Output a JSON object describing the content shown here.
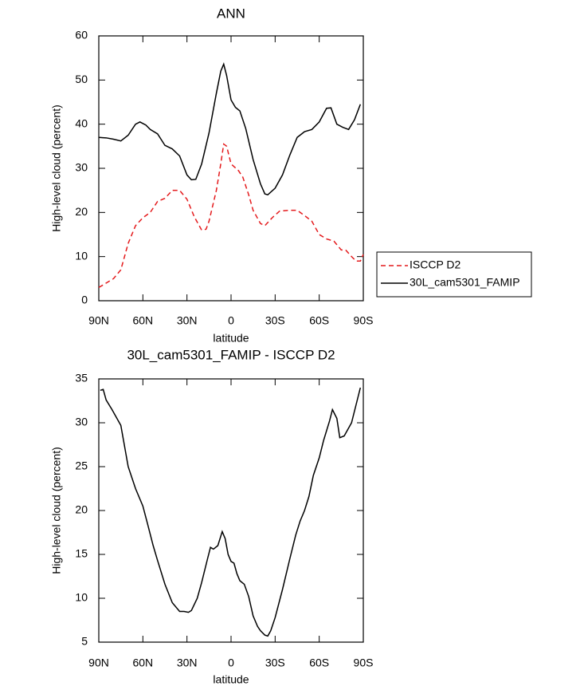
{
  "chart_data": [
    {
      "type": "line",
      "title": "ANN",
      "x_label": "latitude",
      "y_label": "High-level cloud (percent)",
      "xlim": [
        90,
        -90
      ],
      "ylim": [
        0,
        60
      ],
      "xticks": [
        {
          "value": 90,
          "label": "90N"
        },
        {
          "value": 60,
          "label": "60N"
        },
        {
          "value": 30,
          "label": "30N"
        },
        0,
        {
          "value": -30,
          "label": "30S"
        },
        {
          "value": -60,
          "label": "60S"
        },
        {
          "value": -90,
          "label": "90S"
        }
      ],
      "yticks": [
        0,
        10,
        20,
        30,
        40,
        50,
        60
      ],
      "legend": "right",
      "series": [
        {
          "name": "ISCCP D2",
          "color": "#e41a1c",
          "line_style": "dashed",
          "x": [
            90,
            85,
            80,
            75,
            70,
            65,
            60,
            55,
            50,
            45,
            40,
            35,
            30,
            25,
            20,
            17,
            15,
            10,
            7,
            5,
            3,
            0,
            -5,
            -8,
            -12,
            -15,
            -20,
            -23,
            -28,
            -33,
            -40,
            -45,
            -50,
            -55,
            -60,
            -65,
            -70,
            -75,
            -78,
            -82,
            -85,
            -88,
            -90
          ],
          "values": [
            3,
            4,
            5,
            7,
            13,
            17,
            18.8,
            20,
            22.5,
            23.2,
            25,
            25,
            23,
            19,
            16,
            16.2,
            18,
            25,
            31,
            35.5,
            35,
            31,
            29.5,
            28,
            24,
            20.5,
            17.5,
            17,
            18.8,
            20.3,
            20.5,
            20.5,
            19.3,
            18,
            15,
            14,
            13.5,
            11.5,
            11.5,
            10,
            9,
            9,
            10.5
          ]
        },
        {
          "name": "30L_cam5301_FAMIP",
          "color": "#000000",
          "line_style": "solid",
          "x": [
            90,
            85,
            80,
            75,
            70,
            65,
            62,
            58,
            55,
            50,
            45,
            40,
            35,
            30,
            27,
            24,
            20,
            15,
            10,
            7,
            5,
            3,
            0,
            -3,
            -6,
            -10,
            -15,
            -20,
            -23,
            -25,
            -30,
            -35,
            -40,
            -45,
            -50,
            -55,
            -60,
            -65,
            -68,
            -72,
            -76,
            -80,
            -84,
            -88
          ],
          "values": [
            37,
            36.9,
            36.6,
            36.2,
            37.5,
            40,
            40.5,
            39.8,
            38.8,
            37.8,
            35.2,
            34.4,
            32.8,
            28.5,
            27.4,
            27.5,
            31,
            38,
            47,
            52,
            53.6,
            51,
            45.5,
            43.8,
            43,
            39,
            32,
            26.5,
            24.2,
            24,
            25.5,
            28.5,
            33,
            37,
            38.3,
            38.8,
            40.5,
            43.6,
            43.7,
            40,
            39.3,
            38.8,
            41,
            44.5
          ]
        }
      ]
    },
    {
      "type": "line",
      "title": "30L_cam5301_FAMIP - ISCCP D2",
      "x_label": "latitude",
      "y_label": "High-level cloud (percent)",
      "xlim": [
        90,
        -90
      ],
      "ylim": [
        5,
        35
      ],
      "xticks": [
        {
          "value": 90,
          "label": "90N"
        },
        {
          "value": 60,
          "label": "60N"
        },
        {
          "value": 30,
          "label": "30N"
        },
        0,
        {
          "value": -30,
          "label": "30S"
        },
        {
          "value": -60,
          "label": "60S"
        },
        {
          "value": -90,
          "label": "90S"
        }
      ],
      "yticks": [
        5,
        10,
        15,
        20,
        25,
        30,
        35
      ],
      "series": [
        {
          "color": "#000000",
          "line_style": "solid",
          "x": [
            89,
            87,
            85,
            81,
            75,
            70,
            65,
            60,
            57,
            53,
            50,
            45,
            40,
            35,
            32,
            29,
            27,
            23,
            20,
            16,
            14,
            12,
            9,
            6,
            4,
            2,
            0,
            -2,
            -4,
            -6,
            -9,
            -12,
            -15,
            -18,
            -20,
            -23,
            -25,
            -27,
            -30,
            -35,
            -40,
            -44,
            -47,
            -50,
            -53,
            -56,
            -60,
            -63,
            -67,
            -69,
            -72,
            -74,
            -77,
            -82,
            -85,
            -88
          ],
          "values": [
            33.7,
            33.8,
            32.6,
            31.5,
            29.7,
            25,
            22.5,
            20.5,
            18.6,
            16,
            14.3,
            11.6,
            9.5,
            8.5,
            8.5,
            8.4,
            8.6,
            10,
            11.8,
            14.5,
            15.8,
            15.6,
            16,
            17.6,
            16.8,
            15,
            14.2,
            14,
            12.8,
            12,
            11.6,
            10.2,
            8,
            6.8,
            6.3,
            5.8,
            5.7,
            6.3,
            7.8,
            11,
            14.5,
            17.2,
            18.8,
            20,
            21.6,
            24,
            26,
            28,
            30.2,
            31.5,
            30.5,
            28.3,
            28.5,
            30,
            32,
            34
          ]
        }
      ]
    }
  ]
}
